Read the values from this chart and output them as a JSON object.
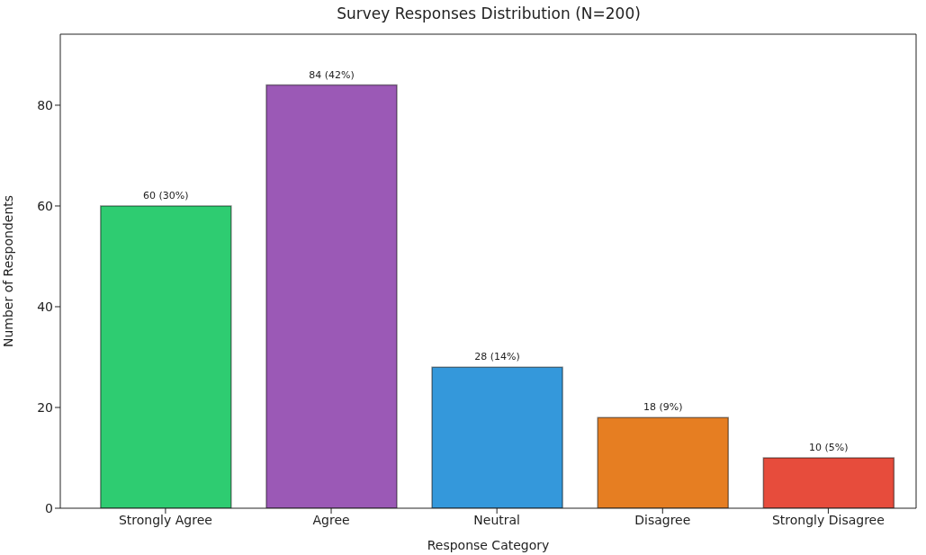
{
  "chart_data": {
    "type": "bar",
    "title": "Survey Responses Distribution (N=200)",
    "xlabel": "Response Category",
    "ylabel": "Number of Respondents",
    "categories": [
      "Strongly Agree",
      "Agree",
      "Neutral",
      "Disagree",
      "Strongly Disagree"
    ],
    "values": [
      60,
      84,
      28,
      18,
      10
    ],
    "colors": [
      "#2ecc71",
      "#9b59b6",
      "#3498db",
      "#e67e22",
      "#e74c3c"
    ],
    "value_labels": [
      "60 (30%)",
      "84 (42%)",
      "28 (14%)",
      "18 (9%)",
      "10 (5%)"
    ],
    "ylim": [
      0,
      94.1
    ],
    "yticks": [
      0,
      20,
      40,
      60,
      80
    ]
  }
}
